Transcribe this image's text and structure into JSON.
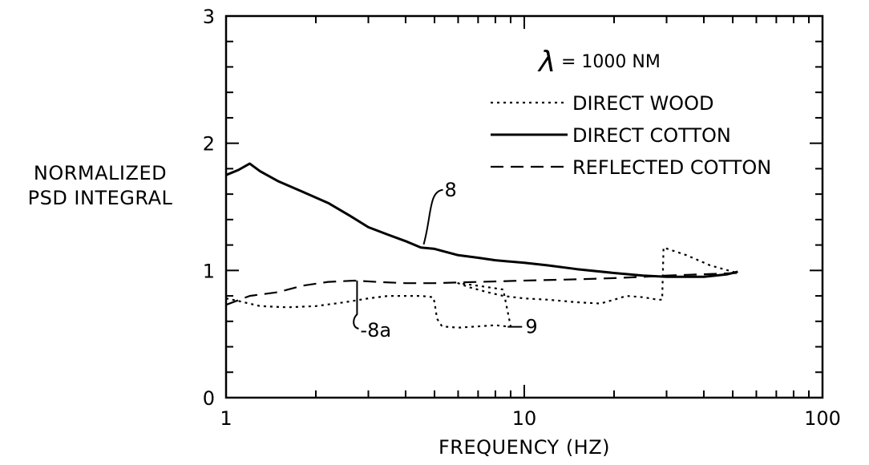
{
  "chart_data": {
    "type": "line",
    "xlabel": "FREQUENCY (HZ)",
    "ylabel": [
      "NORMALIZED",
      "PSD INTEGRAL"
    ],
    "xscale": "log",
    "xlim": [
      1,
      100
    ],
    "ylim": [
      0,
      3
    ],
    "xticks": [
      "1",
      "10",
      "100"
    ],
    "yticks": [
      "0",
      "1",
      "2",
      "3"
    ],
    "grid": false,
    "legend_position": "top-right",
    "legend_title": "λ = 1000 NM",
    "series": [
      {
        "name": "DIRECT WOOD",
        "style": "dotted",
        "x": [
          1,
          1.1,
          1.3,
          1.6,
          2,
          2.5,
          3,
          3.5,
          4,
          4.5,
          4.95,
          5.0,
          5.1,
          5.3,
          6,
          7,
          8,
          8.7,
          9.0,
          8.5,
          7,
          6,
          6.5,
          7.5,
          8.5,
          10,
          12,
          15,
          18,
          20,
          22,
          25,
          28,
          29.0,
          29.3,
          35,
          42,
          50,
          52
        ],
        "y": [
          0.78,
          0.76,
          0.72,
          0.71,
          0.72,
          0.75,
          0.78,
          0.8,
          0.8,
          0.8,
          0.79,
          0.75,
          0.62,
          0.56,
          0.55,
          0.56,
          0.57,
          0.56,
          0.56,
          0.85,
          0.88,
          0.9,
          0.87,
          0.83,
          0.8,
          0.78,
          0.77,
          0.75,
          0.74,
          0.77,
          0.8,
          0.79,
          0.77,
          0.77,
          1.18,
          1.12,
          1.04,
          0.99,
          0.98
        ]
      },
      {
        "name": "DIRECT COTTON",
        "style": "solid",
        "x": [
          1,
          1.1,
          1.2,
          1.3,
          1.5,
          1.8,
          2.2,
          2.6,
          3,
          3.5,
          4,
          4.5,
          5,
          6,
          7,
          8,
          10,
          12,
          15,
          20,
          25,
          30,
          40,
          48,
          52
        ],
        "y": [
          1.75,
          1.79,
          1.84,
          1.78,
          1.7,
          1.62,
          1.53,
          1.43,
          1.34,
          1.28,
          1.23,
          1.18,
          1.17,
          1.12,
          1.1,
          1.08,
          1.06,
          1.04,
          1.01,
          0.98,
          0.96,
          0.95,
          0.95,
          0.97,
          0.99
        ]
      },
      {
        "name": "REFLECTED COTTON",
        "style": "dashed",
        "x": [
          1,
          1.2,
          1.5,
          1.8,
          2.2,
          2.7,
          3.2,
          4,
          5,
          7,
          10,
          15,
          20,
          25,
          30,
          40,
          52
        ],
        "y": [
          0.73,
          0.8,
          0.83,
          0.88,
          0.91,
          0.92,
          0.91,
          0.9,
          0.9,
          0.91,
          0.92,
          0.93,
          0.94,
          0.95,
          0.96,
          0.97,
          0.98
        ]
      }
    ],
    "annotations": [
      {
        "label": "8",
        "target_series": "DIRECT COTTON",
        "x": 4.6,
        "y": 1.18
      },
      {
        "label": "8a",
        "target_series": "REFLECTED COTTON",
        "x": 2.75,
        "y": 0.92
      },
      {
        "label": "9",
        "target_series": "DIRECT WOOD",
        "x": 8.8,
        "y": 0.57
      }
    ]
  }
}
